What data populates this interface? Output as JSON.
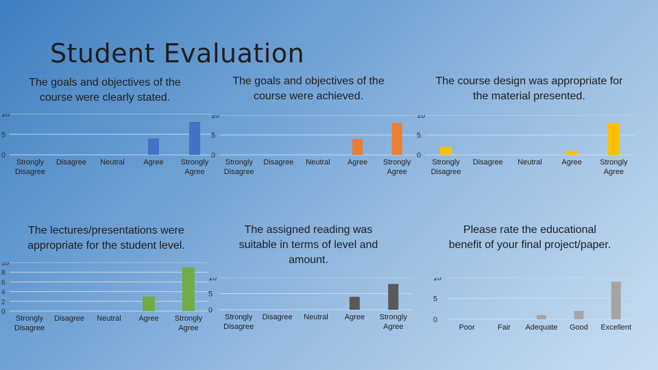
{
  "slide": {
    "title": "Student Evaluation"
  },
  "chart_data": [
    {
      "type": "bar",
      "title": "The goals and objectives of the course were clearly stated.",
      "categories": [
        "Strongly Disagree",
        "Disagree",
        "Neutral",
        "Agree",
        "Strongly Agree"
      ],
      "values": [
        0,
        0,
        0,
        4,
        8
      ],
      "yticks": [
        0,
        5,
        10
      ],
      "ylim": [
        0,
        10
      ],
      "color": "#4472c4"
    },
    {
      "type": "bar",
      "title": "The goals and objectives of the course were achieved.",
      "categories": [
        "Strongly Disagree",
        "Disagree",
        "Neutral",
        "Agree",
        "Strongly Agree"
      ],
      "values": [
        0,
        0,
        0,
        4,
        8
      ],
      "yticks": [
        0,
        5,
        10
      ],
      "ylim": [
        0,
        10
      ],
      "color": "#ed7d31"
    },
    {
      "type": "bar",
      "title": "The course design was appropriate for the material presented.",
      "categories": [
        "Strongly Disagree",
        "Disagree",
        "Neutral",
        "Agree",
        "Strongly Agree"
      ],
      "values": [
        2,
        0,
        0,
        1,
        8
      ],
      "yticks": [
        0,
        5,
        10
      ],
      "ylim": [
        0,
        10
      ],
      "color": "#ffc000"
    },
    {
      "type": "bar",
      "title": "The lectures/presentations were appropriate for the student level.",
      "categories": [
        "Strongly Disagree",
        "Disagree",
        "Neutral",
        "Agree",
        "Strongly Agree"
      ],
      "values": [
        0,
        0,
        0,
        3,
        9
      ],
      "yticks": [
        0,
        2,
        4,
        6,
        8,
        10
      ],
      "ylim": [
        0,
        10
      ],
      "color": "#70ad47"
    },
    {
      "type": "bar",
      "title": "The assigned reading was suitable in terms of level and amount.",
      "categories": [
        "Strongly Disagree",
        "Disagree",
        "Neutral",
        "Agree",
        "Strongly Agree"
      ],
      "values": [
        0,
        0,
        0,
        4,
        8
      ],
      "yticks": [
        0,
        5,
        10
      ],
      "ylim": [
        0,
        10
      ],
      "color": "#595959"
    },
    {
      "type": "bar",
      "title": "Please rate the educational benefit of your final project/paper.",
      "categories": [
        "Poor",
        "Fair",
        "Adequate",
        "Good",
        "Excellent"
      ],
      "values": [
        0,
        0,
        1,
        2,
        9
      ],
      "yticks": [
        0,
        5,
        10
      ],
      "ylim": [
        0,
        10
      ],
      "color": "#a5a5a5"
    }
  ]
}
